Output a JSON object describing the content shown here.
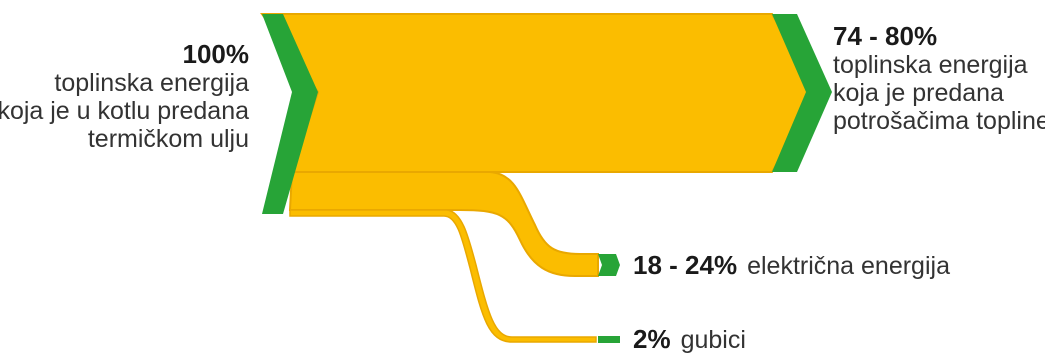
{
  "flows": {
    "input": {
      "percent": "100%",
      "lines": [
        "toplinska energija",
        "koja je u kotlu predana",
        "termičkom ulju"
      ]
    },
    "heat_output": {
      "percent": "74 - 80%",
      "lines": [
        "toplinska energija",
        "koja je predana",
        "potrošačima topline"
      ]
    },
    "electric_output": {
      "percent": "18 - 24%",
      "description": "električna energija"
    },
    "losses": {
      "percent": "2%",
      "description": "gubici"
    }
  },
  "colors": {
    "flow_fill": "#fbbd00",
    "flow_outline": "#e9a800",
    "chevron": "#27a437",
    "text": "#333333"
  }
}
